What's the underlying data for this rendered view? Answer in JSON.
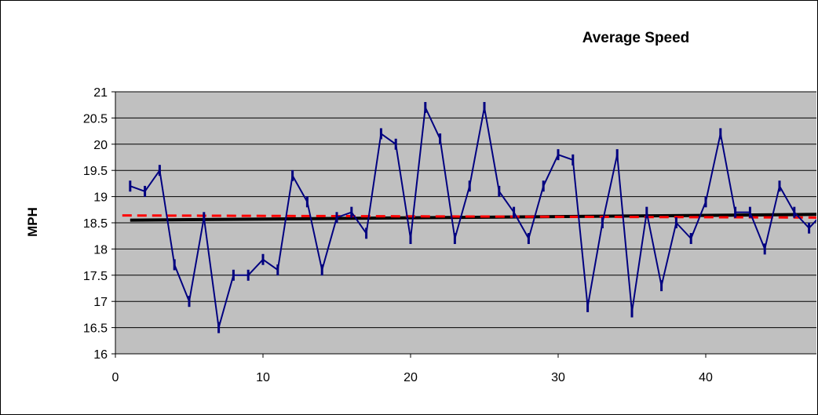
{
  "chart_data": {
    "type": "line",
    "title": "Average Speed",
    "xlabel": "",
    "ylabel": "MPH",
    "xlim": [
      0,
      47.5
    ],
    "ylim": [
      16,
      21
    ],
    "x_ticks": [
      0,
      10,
      20,
      30,
      40
    ],
    "y_ticks": [
      16,
      16.5,
      17,
      17.5,
      18,
      18.5,
      19,
      19.5,
      20,
      20.5,
      21
    ],
    "grid": "horizontal",
    "legend": "none",
    "colors": {
      "plot_bg": "#c0c0c0",
      "series": "#000080",
      "trend": "#000000",
      "mean": "#ff0000"
    },
    "series": [
      {
        "type": "line",
        "x": [
          1,
          2,
          3,
          4,
          5,
          6,
          7,
          8,
          9,
          10,
          11,
          12,
          13,
          14,
          15,
          16,
          17,
          18,
          19,
          20,
          21,
          22,
          23,
          24,
          25,
          26,
          27,
          28,
          29,
          30,
          31,
          32,
          33,
          34,
          35,
          36,
          37,
          38,
          39,
          40,
          41,
          42,
          43,
          44,
          45,
          46,
          47,
          48
        ],
        "values": [
          19.2,
          19.1,
          19.5,
          17.7,
          17.0,
          18.6,
          16.5,
          17.5,
          17.5,
          17.8,
          17.6,
          19.4,
          18.9,
          17.6,
          18.6,
          18.7,
          18.3,
          20.2,
          20.0,
          18.2,
          20.7,
          20.1,
          18.2,
          19.2,
          20.7,
          19.1,
          18.7,
          18.2,
          19.2,
          19.8,
          19.7,
          16.9,
          18.5,
          19.8,
          16.8,
          18.7,
          17.3,
          18.5,
          18.2,
          18.9,
          20.2,
          18.7,
          18.7,
          18.0,
          19.2,
          18.7,
          18.4,
          18.7
        ]
      },
      {
        "type": "trend",
        "x": [
          1,
          47.5
        ],
        "values": [
          18.55,
          18.66
        ]
      },
      {
        "type": "mean",
        "x": [
          1,
          47.5
        ],
        "values": [
          18.64,
          18.6
        ]
      }
    ]
  }
}
